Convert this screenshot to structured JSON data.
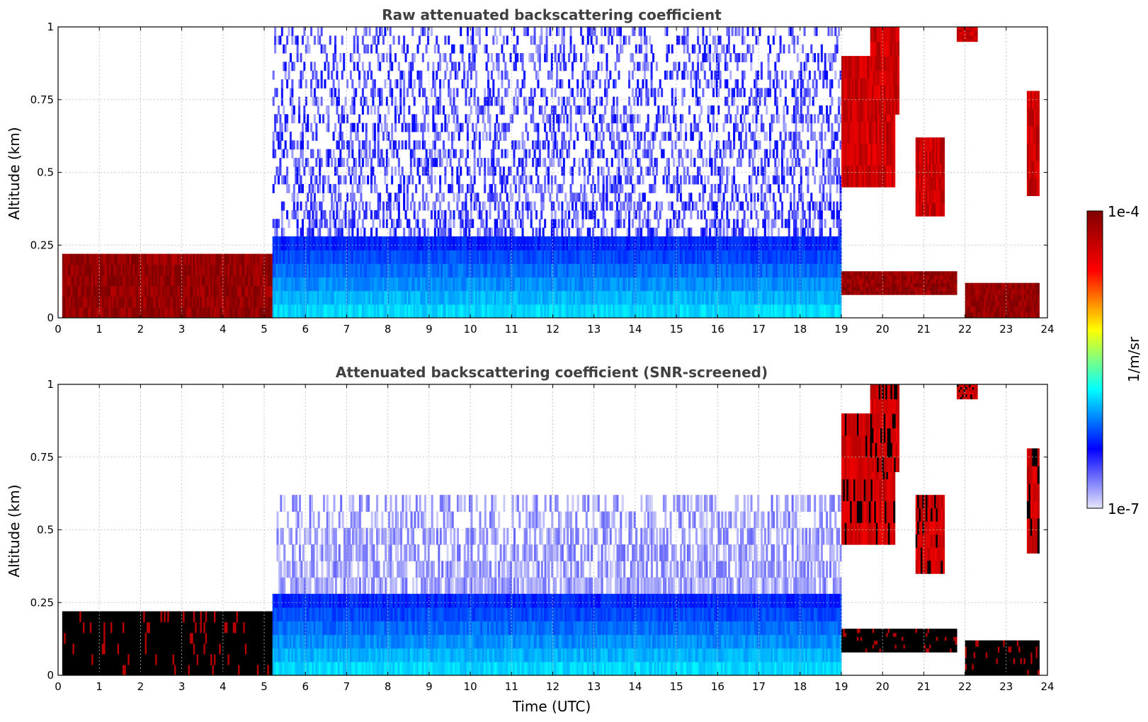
{
  "chart_data": [
    {
      "type": "heatmap",
      "title": "Raw attenuated backscattering coefficient",
      "xlabel": "",
      "ylabel": "Altitude (km)",
      "xlim": [
        0,
        24
      ],
      "ylim": [
        0,
        1
      ],
      "x_ticks": [
        "0",
        "1",
        "2",
        "3",
        "4",
        "5",
        "6",
        "7",
        "8",
        "9",
        "10",
        "11",
        "12",
        "13",
        "14",
        "15",
        "16",
        "17",
        "18",
        "19",
        "20",
        "21",
        "22",
        "23",
        "24"
      ],
      "y_ticks": [
        "0",
        "0.25",
        "0.5",
        "0.75",
        "1"
      ],
      "grid": true,
      "screened": false,
      "colorscale": "log",
      "features": [
        {
          "kind": "noise_above_boundary_layer",
          "t_start": 5.2,
          "t_end": 19.0,
          "alt_bottom": 0.28,
          "alt_top": 1.0
        },
        {
          "kind": "dense_aerosol_layer",
          "t_start": 0.1,
          "t_end": 5.2,
          "alt_bottom": 0.0,
          "alt_top": 0.22
        },
        {
          "kind": "boundary_layer",
          "t_start": 5.2,
          "t_end": 19.0,
          "alt_bottom": 0.0,
          "alt_top": 0.28
        },
        {
          "kind": "cloud",
          "t_start": 19.0,
          "t_end": 20.3,
          "alt_bottom": 0.45,
          "alt_top": 0.9
        },
        {
          "kind": "cloud",
          "t_start": 19.7,
          "t_end": 20.4,
          "alt_bottom": 0.7,
          "alt_top": 1.0
        },
        {
          "kind": "cloud",
          "t_start": 20.8,
          "t_end": 21.5,
          "alt_bottom": 0.35,
          "alt_top": 0.62
        },
        {
          "kind": "cloud",
          "t_start": 21.8,
          "t_end": 22.3,
          "alt_bottom": 0.95,
          "alt_top": 1.0
        },
        {
          "kind": "cloud",
          "t_start": 23.5,
          "t_end": 23.8,
          "alt_bottom": 0.42,
          "alt_top": 0.78
        },
        {
          "kind": "dense_aerosol_layer",
          "t_start": 19.0,
          "t_end": 21.8,
          "alt_bottom": 0.08,
          "alt_top": 0.16
        },
        {
          "kind": "dense_aerosol_layer",
          "t_start": 22.0,
          "t_end": 23.8,
          "alt_bottom": 0.0,
          "alt_top": 0.12
        }
      ]
    },
    {
      "type": "heatmap",
      "title": "Attenuated backscattering coefficient (SNR-screened)",
      "xlabel": "Time (UTC)",
      "ylabel": "Altitude (km)",
      "xlim": [
        0,
        24
      ],
      "ylim": [
        0,
        1
      ],
      "x_ticks": [
        "0",
        "1",
        "2",
        "3",
        "4",
        "5",
        "6",
        "7",
        "8",
        "9",
        "10",
        "11",
        "12",
        "13",
        "14",
        "15",
        "16",
        "17",
        "18",
        "19",
        "20",
        "21",
        "22",
        "23",
        "24"
      ],
      "y_ticks": [
        "0",
        "0.25",
        "0.5",
        "0.75",
        "1"
      ],
      "grid": true,
      "screened": true,
      "colorscale": "log",
      "features": [
        {
          "kind": "faint_residual_layer",
          "t_start": 5.3,
          "t_end": 19.0,
          "alt_bottom": 0.28,
          "alt_top": 0.62
        },
        {
          "kind": "dense_aerosol_layer",
          "t_start": 0.1,
          "t_end": 5.2,
          "alt_bottom": 0.0,
          "alt_top": 0.22
        },
        {
          "kind": "boundary_layer",
          "t_start": 5.2,
          "t_end": 19.0,
          "alt_bottom": 0.0,
          "alt_top": 0.28
        },
        {
          "kind": "cloud",
          "t_start": 19.0,
          "t_end": 20.3,
          "alt_bottom": 0.45,
          "alt_top": 0.9
        },
        {
          "kind": "cloud",
          "t_start": 19.7,
          "t_end": 20.4,
          "alt_bottom": 0.7,
          "alt_top": 1.0
        },
        {
          "kind": "cloud",
          "t_start": 20.8,
          "t_end": 21.5,
          "alt_bottom": 0.35,
          "alt_top": 0.62
        },
        {
          "kind": "cloud",
          "t_start": 21.8,
          "t_end": 22.3,
          "alt_bottom": 0.95,
          "alt_top": 1.0
        },
        {
          "kind": "cloud",
          "t_start": 23.5,
          "t_end": 23.8,
          "alt_bottom": 0.42,
          "alt_top": 0.78
        },
        {
          "kind": "dense_aerosol_layer",
          "t_start": 19.0,
          "t_end": 21.8,
          "alt_bottom": 0.08,
          "alt_top": 0.16
        },
        {
          "kind": "dense_aerosol_layer",
          "t_start": 22.0,
          "t_end": 23.8,
          "alt_bottom": 0.0,
          "alt_top": 0.12
        }
      ]
    }
  ],
  "colorbar": {
    "label": "1/m/sr",
    "max_label": "1e-4",
    "min_label": "1e-7",
    "range": [
      1e-07,
      0.0001
    ],
    "scale": "log",
    "colors": [
      "#e6e6fa",
      "#0000ff",
      "#00ffff",
      "#ffff00",
      "#ff0000",
      "#800000"
    ]
  },
  "screened_saturation_color": "#000000"
}
